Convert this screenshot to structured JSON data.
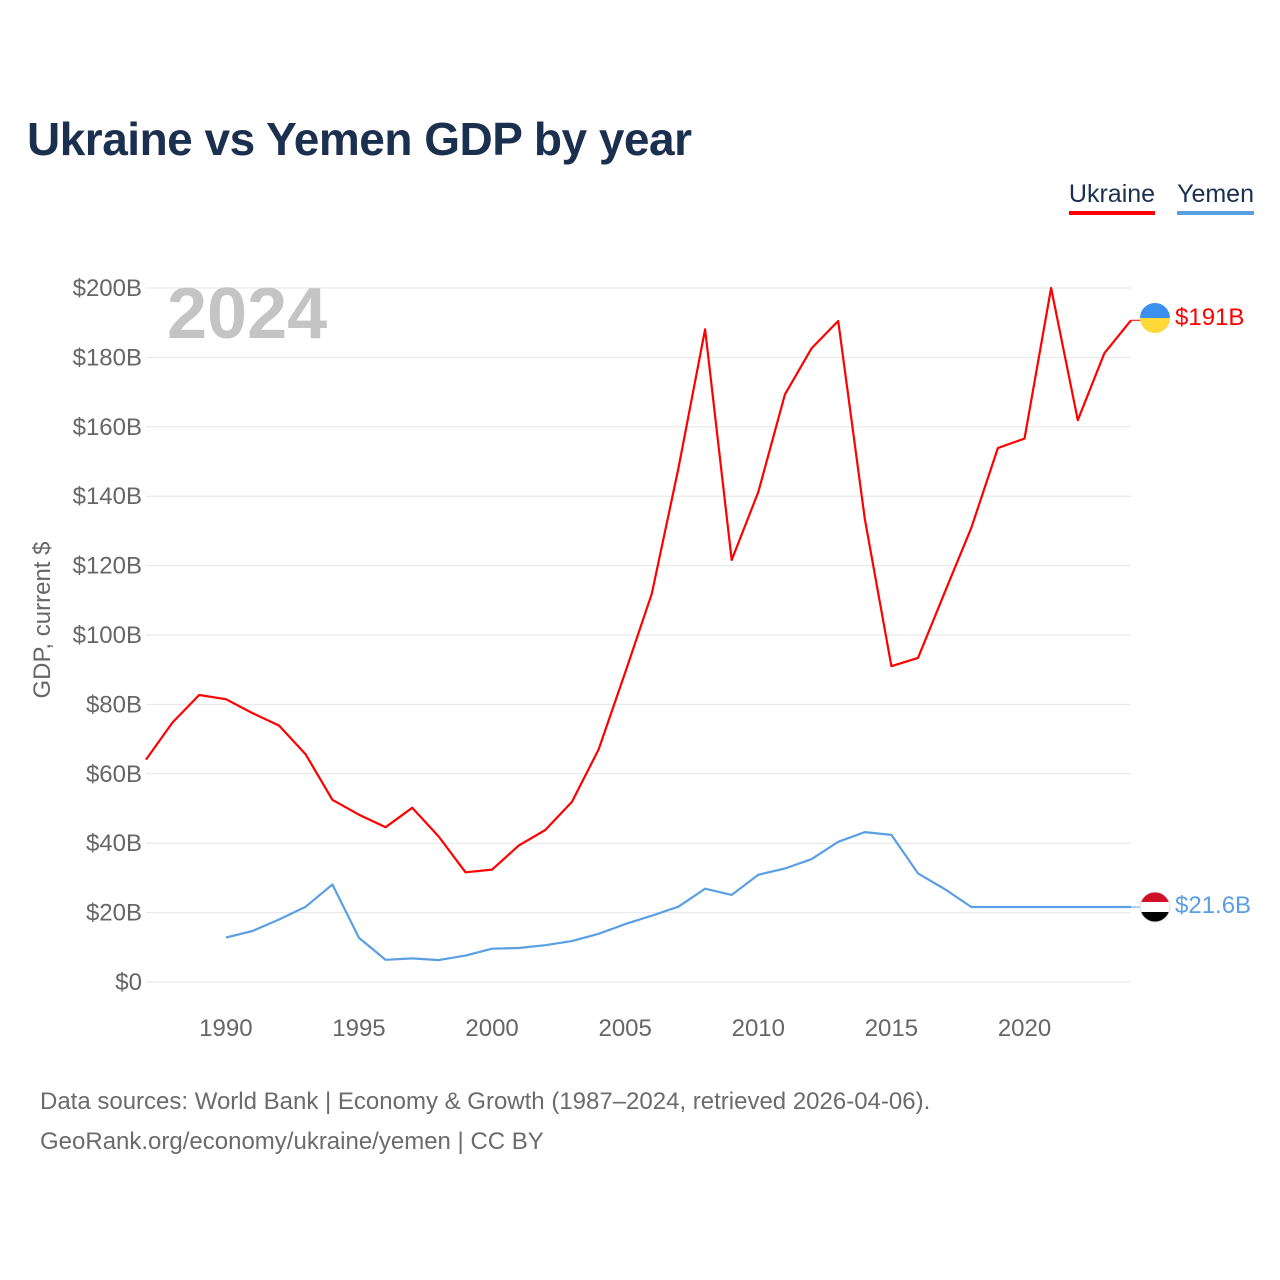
{
  "title": "Ukraine vs Yemen GDP by year",
  "legend": [
    {
      "name": "Ukraine",
      "color": "#ff0000"
    },
    {
      "name": "Yemen",
      "color": "#5b9fe3"
    }
  ],
  "footer": {
    "line1": "Data sources: World Bank | Economy & Growth (1987–2024, retrieved 2026-04-06).",
    "line2": "GeoRank.org/economy/ukraine/yemen | CC BY"
  },
  "colors": {
    "ukraine": "#ff0000",
    "yemen": "#5b9fe3",
    "grid": "#e6e6e6",
    "axis_text": "#666666"
  },
  "chart_data": {
    "type": "line",
    "title": "Ukraine vs Yemen GDP by year",
    "year_label": "2024",
    "ylabel": "GDP, current $",
    "xlabel": "",
    "xlim": [
      1987,
      2024
    ],
    "ylim": [
      0,
      200
    ],
    "unit": "billion USD",
    "y_ticks": [
      0,
      20,
      40,
      60,
      80,
      100,
      120,
      140,
      160,
      180,
      200
    ],
    "y_tick_labels": [
      "$0",
      "$20B",
      "$40B",
      "$60B",
      "$80B",
      "$100B",
      "$120B",
      "$140B",
      "$160B",
      "$180B",
      "$200B"
    ],
    "x_ticks": [
      1990,
      1995,
      2000,
      2005,
      2010,
      2015,
      2020
    ],
    "x_tick_labels": [
      "1990",
      "1995",
      "2000",
      "2005",
      "2010",
      "2015",
      "2020"
    ],
    "grid": true,
    "legend_position": "top-right",
    "series": [
      {
        "name": "Ukraine",
        "color": "#ff0000",
        "end_label": "$191B",
        "x": [
          1987,
          1988,
          1989,
          1990,
          1991,
          1992,
          1993,
          1994,
          1995,
          1996,
          1997,
          1998,
          1999,
          2000,
          2001,
          2002,
          2003,
          2004,
          2005,
          2006,
          2007,
          2008,
          2009,
          2010,
          2011,
          2012,
          2013,
          2014,
          2015,
          2016,
          2017,
          2018,
          2019,
          2020,
          2021,
          2022,
          2023,
          2024
        ],
        "values": [
          64.1,
          74.8,
          82.7,
          81.5,
          77.5,
          73.9,
          65.6,
          52.5,
          48.2,
          44.6,
          50.2,
          41.9,
          31.6,
          32.4,
          39.3,
          43.8,
          51.9,
          67.0,
          89.2,
          111.9,
          148.0,
          188.1,
          121.6,
          141.2,
          169.3,
          182.6,
          190.5,
          133.5,
          91.0,
          93.4,
          112.2,
          130.9,
          153.9,
          156.6,
          200.0,
          161.9,
          181.2,
          190.7
        ]
      },
      {
        "name": "Yemen",
        "color": "#5b9fe3",
        "end_label": "$21.6B",
        "x": [
          1990,
          1991,
          1992,
          1993,
          1994,
          1995,
          1996,
          1997,
          1998,
          1999,
          2000,
          2001,
          2002,
          2003,
          2004,
          2005,
          2006,
          2007,
          2008,
          2009,
          2010,
          2011,
          2012,
          2013,
          2014,
          2015,
          2016,
          2017,
          2018,
          2019,
          2020,
          2021,
          2022,
          2023,
          2024
        ],
        "values": [
          12.8,
          14.7,
          18.0,
          21.7,
          28.1,
          12.7,
          6.4,
          6.8,
          6.3,
          7.6,
          9.6,
          9.8,
          10.6,
          11.8,
          13.9,
          16.7,
          19.1,
          21.7,
          26.9,
          25.1,
          30.9,
          32.7,
          35.4,
          40.4,
          43.2,
          42.4,
          31.3,
          26.8,
          21.6,
          21.6,
          21.6,
          21.6,
          21.6,
          21.6,
          21.6
        ]
      }
    ]
  }
}
